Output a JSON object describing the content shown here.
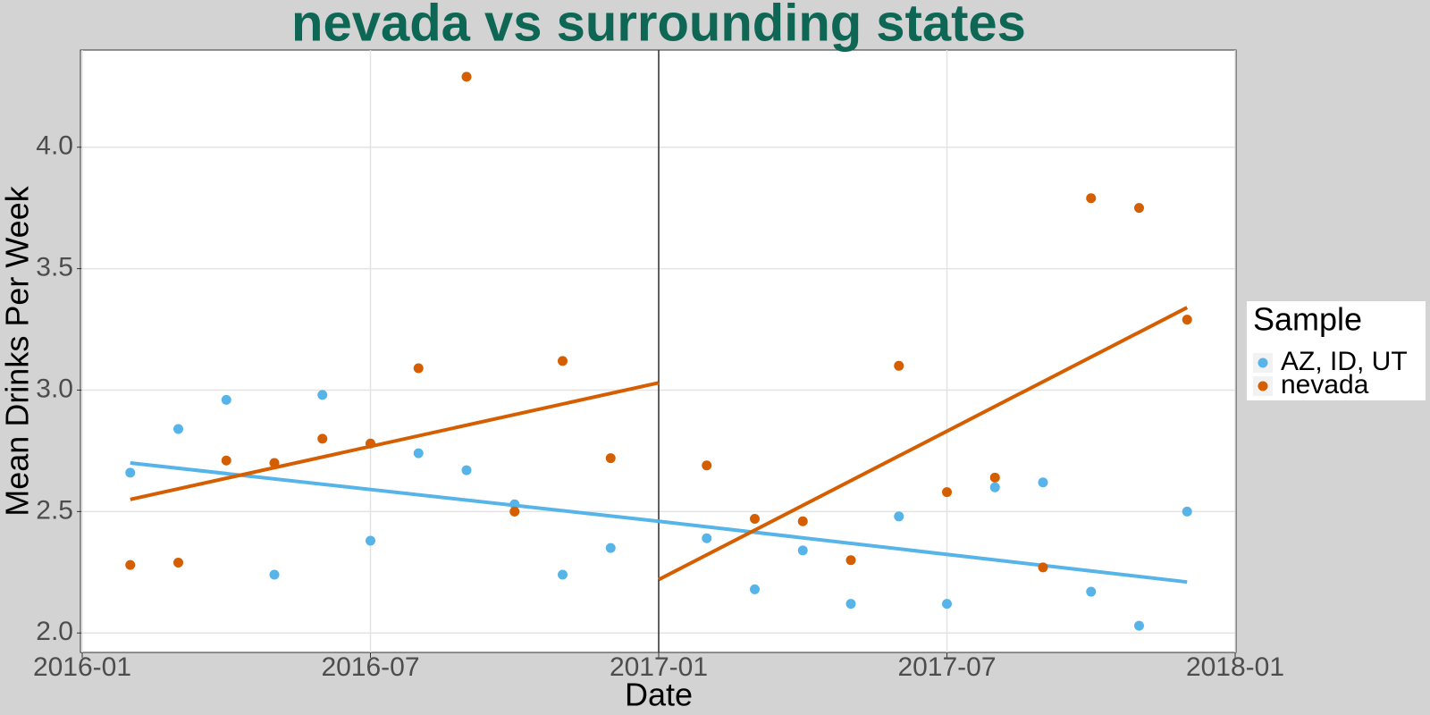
{
  "chart_data": {
    "type": "scatter",
    "title": "nevada vs surrounding states",
    "x_label": "Date",
    "y_label": "Mean Drinks Per Week",
    "legend_title": "Sample",
    "legend_position": "right",
    "grid": true,
    "x": [
      "2016-02",
      "2016-03",
      "2016-04",
      "2016-05",
      "2016-06",
      "2016-07",
      "2016-08",
      "2016-09",
      "2016-10",
      "2016-11",
      "2016-12",
      "2017-02",
      "2017-03",
      "2017-04",
      "2017-05",
      "2017-06",
      "2017-07",
      "2017-08",
      "2017-09",
      "2017-10",
      "2017-11",
      "2017-12"
    ],
    "series": [
      {
        "name": "AZ, ID, UT",
        "color": "#56b4e9",
        "values": [
          2.66,
          2.84,
          2.96,
          2.24,
          2.98,
          2.38,
          2.74,
          2.67,
          2.53,
          2.24,
          2.35,
          2.39,
          2.18,
          2.34,
          2.12,
          2.48,
          2.12,
          2.6,
          2.62,
          2.17,
          2.03,
          2.5
        ]
      },
      {
        "name": "nevada",
        "color": "#d55e00",
        "values": [
          2.28,
          2.29,
          2.71,
          2.7,
          2.8,
          2.78,
          3.09,
          4.29,
          2.5,
          3.12,
          2.72,
          2.69,
          2.47,
          2.46,
          2.3,
          3.1,
          2.58,
          2.64,
          2.27,
          3.79,
          3.75,
          3.29
        ]
      }
    ],
    "trend_lines": [
      {
        "color": "#56b4e9",
        "x": [
          "2016-02",
          "2017-01"
        ],
        "values": [
          2.7,
          2.46
        ]
      },
      {
        "color": "#56b4e9",
        "x": [
          "2017-01",
          "2017-12"
        ],
        "values": [
          2.46,
          2.21
        ]
      },
      {
        "color": "#d55e00",
        "x": [
          "2016-02",
          "2017-01"
        ],
        "values": [
          2.55,
          3.03
        ]
      },
      {
        "color": "#d55e00",
        "x": [
          "2017-01",
          "2017-12"
        ],
        "values": [
          2.22,
          3.34
        ]
      }
    ],
    "vline_x": "2017-01",
    "xlim": [
      "2016-01",
      "2018-01"
    ],
    "xticks": [
      "2016-01",
      "2016-07",
      "2017-01",
      "2017-07",
      "2018-01"
    ],
    "ylim": [
      1.92,
      4.4
    ],
    "yticks": [
      {
        "value": 2,
        "label": "2.0"
      },
      {
        "value": 2.5,
        "label": "2.5"
      },
      {
        "value": 3,
        "label": "3.0"
      },
      {
        "value": 3.5,
        "label": "3.5"
      },
      {
        "value": 4,
        "label": "4.0"
      }
    ]
  }
}
